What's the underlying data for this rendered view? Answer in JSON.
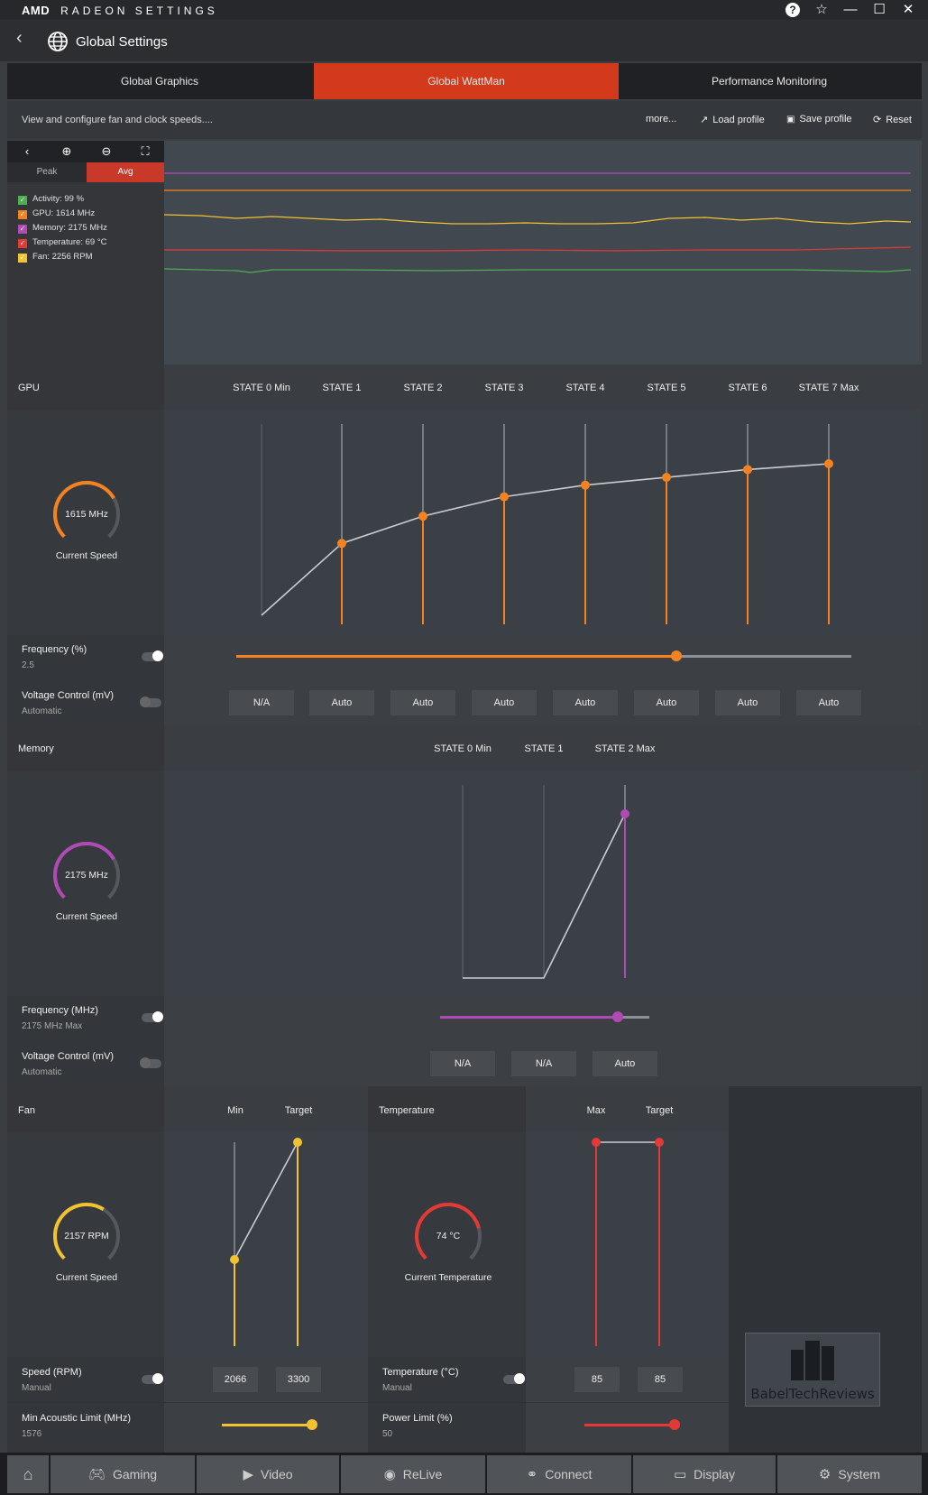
{
  "app": {
    "brand": "AMD",
    "title": "RADEON SETTINGS"
  },
  "window": {
    "help": "?",
    "favorite": "☆",
    "minimize": "—",
    "maximize": "☐",
    "close": "✕"
  },
  "header": {
    "title": "Global Settings"
  },
  "tabs": [
    {
      "label": "Global Graphics",
      "active": false
    },
    {
      "label": "Global WattMan",
      "active": true
    },
    {
      "label": "Performance Monitoring",
      "active": false
    }
  ],
  "toolbar": {
    "hint": "View and configure fan and clock speeds....",
    "more": "more...",
    "load_profile": "Load profile",
    "save_profile": "Save profile",
    "reset": "Reset"
  },
  "graph": {
    "peak": "Peak",
    "avg": "Avg",
    "legend": [
      {
        "label": "Activity: 99 %",
        "color": "#4caf50"
      },
      {
        "label": "GPU: 1614 MHz",
        "color": "#f58220"
      },
      {
        "label": "Memory: 2175 MHz",
        "color": "#b04ab5"
      },
      {
        "label": "Temperature: 69 °C",
        "color": "#e53935"
      },
      {
        "label": "Fan: 2256 RPM",
        "color": "#f2c230"
      }
    ]
  },
  "gpu": {
    "label": "GPU",
    "states": [
      "STATE 0 Min",
      "STATE 1",
      "STATE 2",
      "STATE 3",
      "STATE 4",
      "STATE 5",
      "STATE 6",
      "STATE 7 Max"
    ],
    "curve_levels": [
      0.0,
      0.37,
      0.51,
      0.61,
      0.67,
      0.71,
      0.75,
      0.78
    ],
    "gauge_value": "1615 MHz",
    "gauge_fill": 0.72,
    "gauge_caption": "Current Speed",
    "frequency_title": "Frequency (%)",
    "frequency_value": "2.5",
    "frequency_slider": 0.715,
    "voltage_title": "Voltage Control (mV)",
    "voltage_sub": "Automatic",
    "voltages": [
      "N/A",
      "Auto",
      "Auto",
      "Auto",
      "Auto",
      "Auto",
      "Auto",
      "Auto"
    ],
    "accent": "#f58220"
  },
  "memory": {
    "label": "Memory",
    "states": [
      "STATE 0 Min",
      "STATE 1",
      "STATE 2 Max"
    ],
    "gauge_value": "2175 MHz",
    "gauge_fill": 0.72,
    "gauge_caption": "Current Speed",
    "frequency_title": "Frequency (MHz)",
    "frequency_value": "2175 MHz Max",
    "frequency_slider": 0.85,
    "voltage_title": "Voltage Control (mV)",
    "voltage_sub": "Automatic",
    "voltages": [
      "N/A",
      "N/A",
      "Auto"
    ],
    "accent": "#b04ab5"
  },
  "fan": {
    "label": "Fan",
    "col_min": "Min",
    "col_target": "Target",
    "gauge_value": "2157 RPM",
    "gauge_fill": 0.62,
    "gauge_caption": "Current Speed",
    "speed_title": "Speed (RPM)",
    "speed_sub": "Manual",
    "speed_min": "2066",
    "speed_target": "3300",
    "acoustic_title": "Min Acoustic Limit (MHz)",
    "acoustic_value": "1576",
    "acoustic_slider": 1.0,
    "accent": "#f2c230"
  },
  "temperature": {
    "label": "Temperature",
    "col_max": "Max",
    "col_target": "Target",
    "gauge_value": "74 °C",
    "gauge_fill": 0.78,
    "gauge_caption": "Current Temperature",
    "temp_title": "Temperature (°C)",
    "temp_sub": "Manual",
    "temp_max": "85",
    "temp_target": "85",
    "power_title": "Power Limit (%)",
    "power_value": "50",
    "power_slider": 1.0,
    "accent": "#e53935"
  },
  "watermark": "BabelTechReviews",
  "nav": [
    {
      "label": "",
      "icon": "home-icon"
    },
    {
      "label": "Gaming",
      "icon": "gamepad-icon"
    },
    {
      "label": "Video",
      "icon": "play-icon"
    },
    {
      "label": "ReLive",
      "icon": "relive-icon"
    },
    {
      "label": "Connect",
      "icon": "connect-icon"
    },
    {
      "label": "Display",
      "icon": "monitor-icon"
    },
    {
      "label": "System",
      "icon": "gear-icon"
    }
  ]
}
